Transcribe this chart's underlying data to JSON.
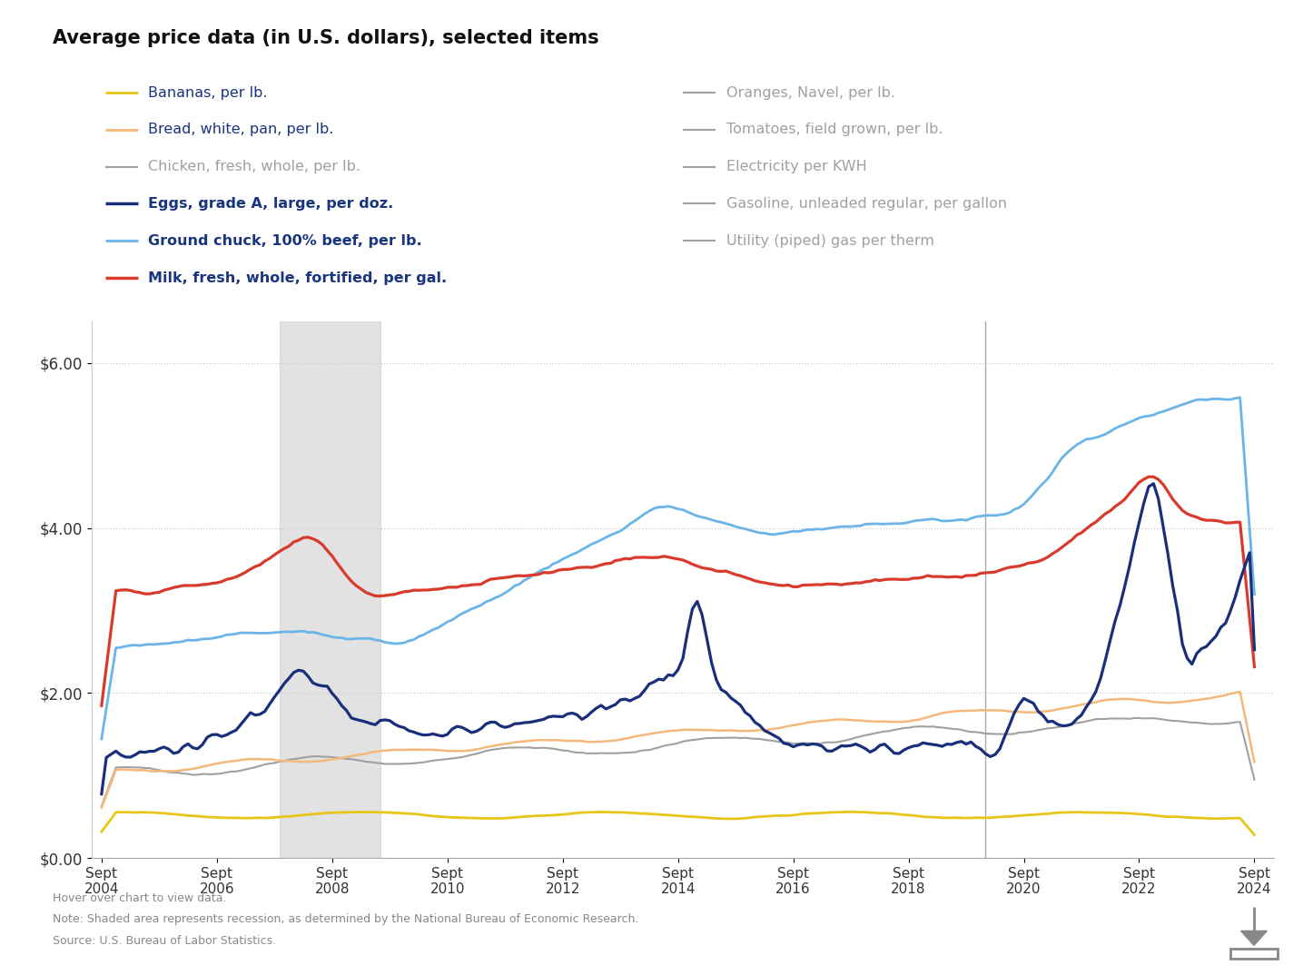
{
  "title": "Average price data (in U.S. dollars), selected items",
  "title_fontsize": 15,
  "background_color": "#ffffff",
  "ylim": [
    0.0,
    6.5
  ],
  "yticks": [
    0.0,
    2.0,
    4.0,
    6.0
  ],
  "ytick_labels": [
    "$0.00",
    "$2.00",
    "$4.00",
    "$6.00"
  ],
  "recession_shading": [
    {
      "start": 2007.75,
      "end": 2009.5
    }
  ],
  "recession_line": 2020.0,
  "xlim_start": 2004.5,
  "xlim_end": 2025.0,
  "xtick_years": [
    2004,
    2006,
    2008,
    2010,
    2012,
    2014,
    2016,
    2018,
    2020,
    2022,
    2024
  ],
  "note_lines": [
    "Hover over chart to view data.",
    "Note: Shaded area represents recession, as determined by the National Bureau of Economic Research.",
    "Source: U.S. Bureau of Labor Statistics."
  ],
  "legend_left": [
    {
      "label": "Bananas, per lb.",
      "color": "#e8c619",
      "lw": 2.0,
      "text_color": "#1a3580",
      "bold": false
    },
    {
      "label": "Bread, white, pan, per lb.",
      "color": "#f5b87a",
      "lw": 2.0,
      "text_color": "#1a3580",
      "bold": false
    },
    {
      "label": "Chicken, fresh, whole, per lb.",
      "color": "#a0a0a0",
      "lw": 1.5,
      "text_color": "#a0a0a0",
      "bold": false
    },
    {
      "label": "Eggs, grade A, large, per doz.",
      "color": "#1a2f7a",
      "lw": 2.5,
      "text_color": "#1a3580",
      "bold": true
    },
    {
      "label": "Ground chuck, 100% beef, per lb.",
      "color": "#6ab4e8",
      "lw": 2.0,
      "text_color": "#1a3580",
      "bold": true
    },
    {
      "label": "Milk, fresh, whole, fortified, per gal.",
      "color": "#d93a2b",
      "lw": 2.5,
      "text_color": "#1a3580",
      "bold": true
    }
  ],
  "legend_right": [
    {
      "label": "Oranges, Navel, per lb.",
      "color": "#a0a0a0",
      "lw": 1.5,
      "text_color": "#a0a0a0",
      "bold": false
    },
    {
      "label": "Tomatoes, field grown, per lb.",
      "color": "#a0a0a0",
      "lw": 1.5,
      "text_color": "#a0a0a0",
      "bold": false
    },
    {
      "label": "Electricity per KWH",
      "color": "#a0a0a0",
      "lw": 1.5,
      "text_color": "#a0a0a0",
      "bold": false
    },
    {
      "label": "Gasoline, unleaded regular, per gallon",
      "color": "#a0a0a0",
      "lw": 1.5,
      "text_color": "#a0a0a0",
      "bold": false
    },
    {
      "label": "Utility (piped) gas per therm",
      "color": "#a0a0a0",
      "lw": 1.5,
      "text_color": "#a0a0a0",
      "bold": false
    }
  ]
}
